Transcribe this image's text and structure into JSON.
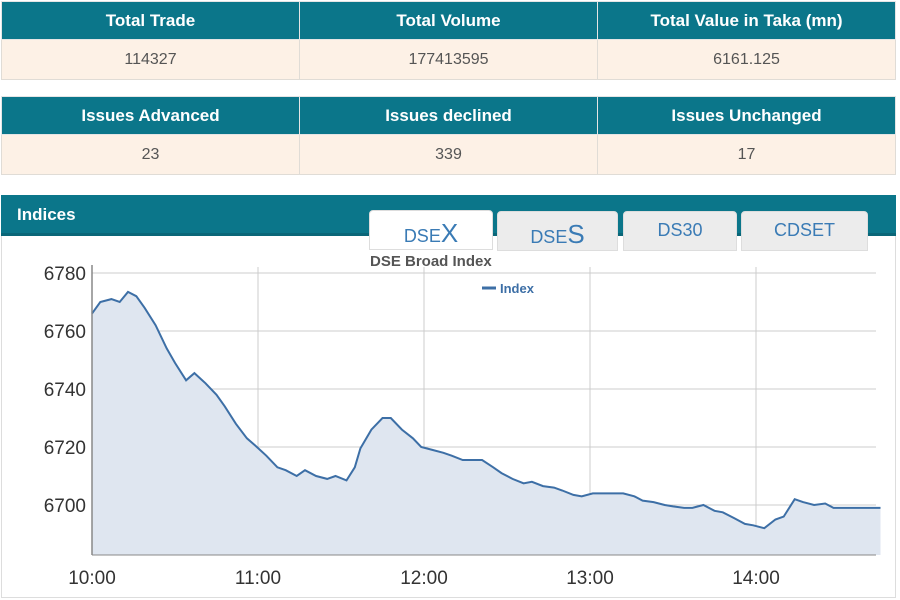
{
  "summary_table": {
    "headers": [
      "Total Trade",
      "Total Volume",
      "Total Value in Taka (mn)"
    ],
    "values": [
      "114327",
      "177413595",
      "6161.125"
    ]
  },
  "issues_table": {
    "headers": [
      "Issues Advanced",
      "Issues declined",
      "Issues Unchanged"
    ],
    "values": [
      "23",
      "339",
      "17"
    ]
  },
  "indices": {
    "title": "Indices",
    "tabs": [
      {
        "prefix": "DSE",
        "suffix": "X",
        "active": true
      },
      {
        "prefix": "DSE",
        "suffix": "S",
        "active": false
      },
      {
        "prefix": "DS30",
        "suffix": "",
        "active": false
      },
      {
        "prefix": "CDSET",
        "suffix": "",
        "active": false
      }
    ]
  },
  "colors": {
    "header": "#0b768a",
    "line": "#3d6fa6",
    "fill": "#dfe6f0"
  },
  "chart_data": {
    "type": "area",
    "title": "DSE Broad Index",
    "legend": [
      "Index"
    ],
    "legend_position": "top-center",
    "xlabel": "",
    "ylabel": "",
    "x_unit": "minutes after 10:00",
    "x_ticks": [
      "10:00",
      "11:00",
      "12:00",
      "13:00",
      "14:00"
    ],
    "y_ticks": [
      "6700",
      "6720",
      "6740",
      "6760",
      "6780"
    ],
    "xlim": [
      0,
      285
    ],
    "ylim": [
      6683,
      6782
    ],
    "grid": true,
    "series": [
      {
        "name": "Index",
        "x": [
          0,
          3,
          7,
          10,
          13,
          16,
          19,
          23,
          27,
          30,
          34,
          37,
          41,
          45,
          48,
          52,
          56,
          59,
          63,
          67,
          70,
          74,
          77,
          81,
          85,
          88,
          92,
          95,
          97,
          101,
          105,
          108,
          112,
          116,
          119,
          123,
          127,
          130,
          134,
          137,
          141,
          145,
          148,
          152,
          156,
          159,
          163,
          167,
          170,
          174,
          177,
          181,
          185,
          188,
          192,
          196,
          199,
          203,
          207,
          210,
          214,
          217,
          221,
          225,
          228,
          232,
          236,
          239,
          243,
          247,
          250,
          254,
          257,
          261,
          265,
          268,
          285
        ],
        "values": [
          6766,
          6770,
          6771,
          6770,
          6773.5,
          6772,
          6768,
          6762,
          6754,
          6749,
          6743,
          6745.5,
          6742,
          6738,
          6734,
          6728,
          6723,
          6720.5,
          6717,
          6713,
          6712,
          6710,
          6712,
          6710,
          6709,
          6710,
          6708.5,
          6713,
          6719.5,
          6726,
          6730,
          6730,
          6726,
          6723,
          6720,
          6719,
          6718,
          6717,
          6715.5,
          6715.5,
          6715.5,
          6713,
          6711,
          6709,
          6707.5,
          6708,
          6706.5,
          6706,
          6705,
          6703.5,
          6703,
          6704,
          6704,
          6704,
          6704,
          6703,
          6701.5,
          6701,
          6700,
          6699.5,
          6699,
          6699,
          6700,
          6698,
          6697.5,
          6695.5,
          6693.5,
          6693,
          6692,
          6695,
          6696,
          6702,
          6701,
          6700,
          6700.5,
          6699,
          6699
        ]
      }
    ]
  }
}
